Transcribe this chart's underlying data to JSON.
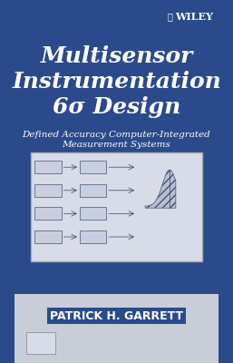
{
  "bg_color": "#2b4a8b",
  "title_line1": "Multisensor",
  "title_line2": "Instrumentation",
  "title_line3": "6σ Design",
  "subtitle_line1": "Defined Accuracy Computer-Integrated",
  "subtitle_line2": "Measurement Systems",
  "author": "PATRICK H. GARRETT",
  "wiley_text": "WILEY",
  "title_color": "#ffffff",
  "subtitle_color": "#ffffff",
  "author_color": "#ffffff",
  "title_fontsize": 18,
  "subtitle_fontsize": 7.5,
  "author_fontsize": 9,
  "diagram_bg": "#d8dce8",
  "diagram_border": "#aaaaaa",
  "bottom_strip_color": "#c8cdd8",
  "wiley_color": "#ffffff"
}
